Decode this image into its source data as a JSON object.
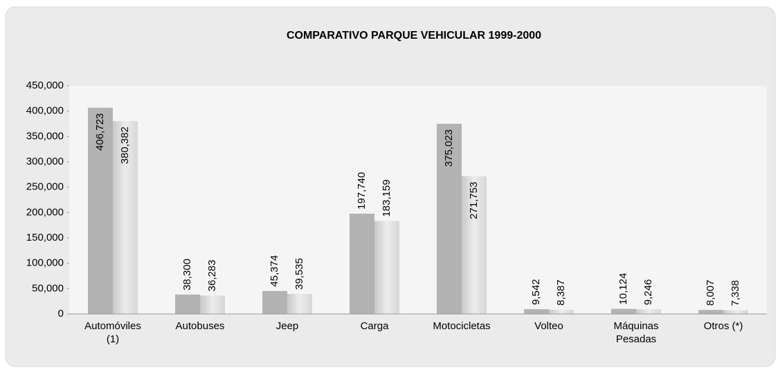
{
  "chart_data": {
    "type": "bar",
    "title": "COMPARATIVO  PARQUE  VEHICULAR  1999-2000",
    "categories": [
      "Automóviles (1)",
      "Autobuses",
      "Jeep",
      "Carga",
      "Motocicletas",
      "Volteo",
      "Máquinas Pesadas",
      "Otros (*)"
    ],
    "series": [
      {
        "color": "#b3b3b3",
        "values": [
          406723,
          38300,
          45374,
          197740,
          375023,
          9542,
          10124,
          8007
        ],
        "value_labels": [
          "406,723",
          "38,300",
          "45,374",
          "197,740",
          "375,023",
          "9,542",
          "10,124",
          "8,007"
        ]
      },
      {
        "color": "#dcdcdc",
        "values": [
          380382,
          36283,
          39535,
          183159,
          271753,
          8387,
          9246,
          7338
        ],
        "value_labels": [
          "380,382",
          "36,283",
          "39,535",
          "183,159",
          "271,753",
          "8,387",
          "9,246",
          "7,338"
        ]
      }
    ],
    "ylim": [
      0,
      450000
    ],
    "yticks": [
      0,
      {
        "value": 50000,
        "label": "50,000"
      },
      {
        "value": 100000,
        "label": "100,000"
      },
      {
        "value": 150000,
        "label": "150,000"
      },
      {
        "value": 200000,
        "label": "200,000"
      },
      {
        "value": 250000,
        "label": "250,000"
      },
      {
        "value": 300000,
        "label": "300,000"
      },
      {
        "value": 350000,
        "label": "350,000"
      },
      {
        "value": 400000,
        "label": "400,000"
      },
      {
        "value": 450000,
        "label": "450,000"
      }
    ],
    "grid": false
  }
}
